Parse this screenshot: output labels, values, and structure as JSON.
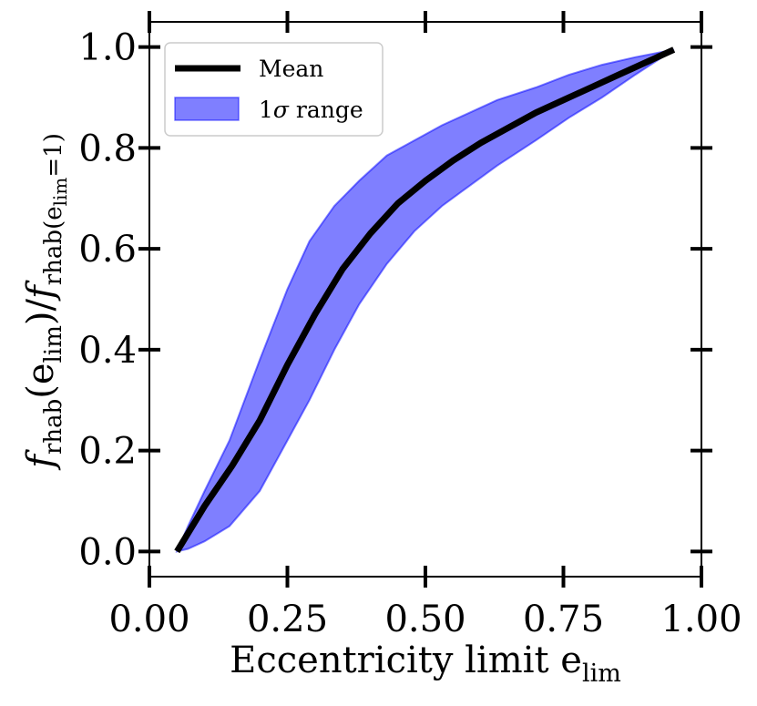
{
  "chart_data": {
    "type": "line",
    "title": "",
    "xlabel": "Eccentricity limit e",
    "xlabel_sub": "lim",
    "ylabel": {
      "f1": "f",
      "sub1": "rhab",
      "mid": "(e",
      "sub2": "lim",
      "mid2": ")/",
      "f2": "f",
      "sub3": "rhab(e",
      "sub3b": "lim",
      "sub3c": "=1)"
    },
    "xlim": [
      0.0,
      1.0
    ],
    "ylim": [
      -0.05,
      1.05
    ],
    "xticks": [
      0.0,
      0.25,
      0.5,
      0.75,
      1.0
    ],
    "xtick_labels": [
      "0.00",
      "0.25",
      "0.50",
      "0.75",
      "1.00"
    ],
    "yticks": [
      0.0,
      0.2,
      0.4,
      0.6,
      0.8,
      1.0
    ],
    "ytick_labels": [
      "0.0",
      "0.2",
      "0.4",
      "0.6",
      "0.8",
      "1.0"
    ],
    "grid": false,
    "legend_position": "top-left",
    "series": [
      {
        "name": "Mean",
        "kind": "line",
        "color": "#000000",
        "x": [
          0.05,
          0.1,
          0.15,
          0.2,
          0.25,
          0.3,
          0.35,
          0.4,
          0.45,
          0.5,
          0.55,
          0.6,
          0.65,
          0.7,
          0.75,
          0.8,
          0.85,
          0.9,
          0.95
        ],
        "y": [
          0.0,
          0.09,
          0.17,
          0.26,
          0.37,
          0.47,
          0.56,
          0.63,
          0.69,
          0.735,
          0.775,
          0.81,
          0.84,
          0.87,
          0.895,
          0.92,
          0.945,
          0.97,
          0.995
        ]
      },
      {
        "name": "1σ range",
        "name_prefix": "1",
        "name_symbol": "σ",
        "name_suffix": " range",
        "kind": "band",
        "color": "#0000ff",
        "fill_opacity": 0.5,
        "x": [
          0.05,
          0.07,
          0.1,
          0.145,
          0.2,
          0.25,
          0.29,
          0.335,
          0.38,
          0.43,
          0.48,
          0.53,
          0.58,
          0.63,
          0.7,
          0.76,
          0.82,
          0.88,
          0.95
        ],
        "lower": [
          0.0,
          0.005,
          0.02,
          0.05,
          0.12,
          0.22,
          0.3,
          0.4,
          0.49,
          0.57,
          0.635,
          0.685,
          0.725,
          0.765,
          0.815,
          0.86,
          0.9,
          0.945,
          0.995
        ],
        "upper": [
          0.0,
          0.05,
          0.12,
          0.22,
          0.38,
          0.52,
          0.615,
          0.685,
          0.735,
          0.785,
          0.815,
          0.845,
          0.87,
          0.895,
          0.92,
          0.945,
          0.965,
          0.98,
          0.995
        ]
      }
    ]
  }
}
